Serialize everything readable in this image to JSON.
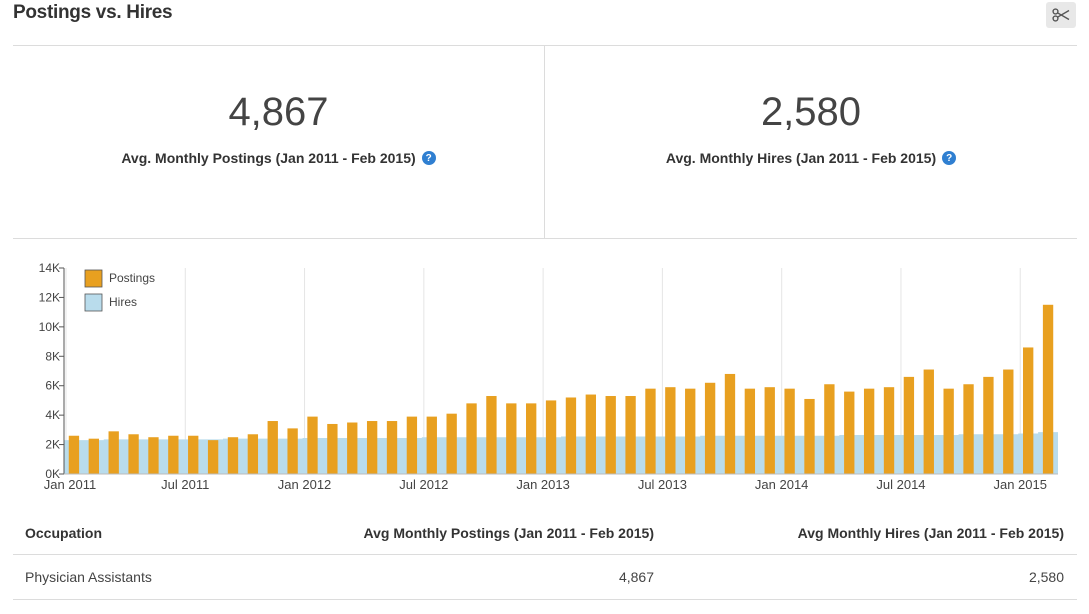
{
  "header": {
    "title": "Postings vs. Hires",
    "scissors_icon": "scissors-icon"
  },
  "stats": {
    "postings": {
      "value": "4,867",
      "label": "Avg. Monthly Postings (Jan 2011 - Feb 2015)"
    },
    "hires": {
      "value": "2,580",
      "label": "Avg. Monthly Hires (Jan 2011 - Feb 2015)"
    },
    "help_icon": "?"
  },
  "colors": {
    "postings": "#e8a020",
    "hires": "#b9dcec",
    "grid": "#e5e5e5"
  },
  "chart_data": {
    "type": "bar",
    "title": "",
    "xlabel": "",
    "ylabel": "",
    "ylim": [
      0,
      14000
    ],
    "y_ticks": [
      0,
      2000,
      4000,
      6000,
      8000,
      10000,
      12000,
      14000
    ],
    "y_tick_labels": [
      "0K",
      "2K",
      "4K",
      "6K",
      "8K",
      "10K",
      "12K",
      "14K"
    ],
    "x_tick_labels": [
      {
        "index": 0,
        "label": "Jan 2011"
      },
      {
        "index": 6,
        "label": "Jul 2011"
      },
      {
        "index": 12,
        "label": "Jan 2012"
      },
      {
        "index": 18,
        "label": "Jul 2012"
      },
      {
        "index": 24,
        "label": "Jan 2013"
      },
      {
        "index": 30,
        "label": "Jul 2013"
      },
      {
        "index": 36,
        "label": "Jan 2014"
      },
      {
        "index": 42,
        "label": "Jul 2014"
      },
      {
        "index": 48,
        "label": "Jan 2015"
      }
    ],
    "legend": {
      "position": "top-left",
      "entries": [
        "Postings",
        "Hires"
      ]
    },
    "grid": "vertical",
    "categories": [
      "Jan 2011",
      "Feb 2011",
      "Mar 2011",
      "Apr 2011",
      "May 2011",
      "Jun 2011",
      "Jul 2011",
      "Aug 2011",
      "Sep 2011",
      "Oct 2011",
      "Nov 2011",
      "Dec 2011",
      "Jan 2012",
      "Feb 2012",
      "Mar 2012",
      "Apr 2012",
      "May 2012",
      "Jun 2012",
      "Jul 2012",
      "Aug 2012",
      "Sep 2012",
      "Oct 2012",
      "Nov 2012",
      "Dec 2012",
      "Jan 2013",
      "Feb 2013",
      "Mar 2013",
      "Apr 2013",
      "May 2013",
      "Jun 2013",
      "Jul 2013",
      "Aug 2013",
      "Sep 2013",
      "Oct 2013",
      "Nov 2013",
      "Dec 2013",
      "Jan 2014",
      "Feb 2014",
      "Mar 2014",
      "Apr 2014",
      "May 2014",
      "Jun 2014",
      "Jul 2014",
      "Aug 2014",
      "Sep 2014",
      "Oct 2014",
      "Nov 2014",
      "Dec 2014",
      "Jan 2015",
      "Feb 2015"
    ],
    "series": [
      {
        "name": "Postings",
        "values": [
          2600,
          2400,
          2900,
          2700,
          2500,
          2600,
          2600,
          2300,
          2500,
          2700,
          3600,
          3100,
          3900,
          3400,
          3500,
          3600,
          3600,
          3900,
          3900,
          4100,
          4800,
          5300,
          4800,
          4800,
          5000,
          5200,
          5400,
          5300,
          5300,
          5800,
          5900,
          5800,
          6200,
          6800,
          5800,
          5900,
          5800,
          5100,
          6100,
          5600,
          5800,
          5900,
          6600,
          7100,
          5800,
          6100,
          6600,
          7100,
          8600,
          11500
        ]
      },
      {
        "name": "Hires",
        "values": [
          2300,
          2300,
          2350,
          2350,
          2350,
          2350,
          2350,
          2350,
          2400,
          2400,
          2400,
          2400,
          2450,
          2450,
          2450,
          2450,
          2450,
          2450,
          2500,
          2500,
          2500,
          2500,
          2500,
          2500,
          2500,
          2550,
          2550,
          2550,
          2550,
          2550,
          2550,
          2550,
          2600,
          2600,
          2600,
          2600,
          2600,
          2600,
          2600,
          2650,
          2650,
          2650,
          2650,
          2650,
          2650,
          2700,
          2700,
          2700,
          2750,
          2850
        ]
      }
    ]
  },
  "table": {
    "headers": [
      "Occupation",
      "Avg Monthly Postings (Jan 2011 - Feb 2015)",
      "Avg Monthly Hires (Jan 2011 - Feb 2015)"
    ],
    "rows": [
      [
        "Physician Assistants",
        "4,867",
        "2,580"
      ]
    ]
  }
}
